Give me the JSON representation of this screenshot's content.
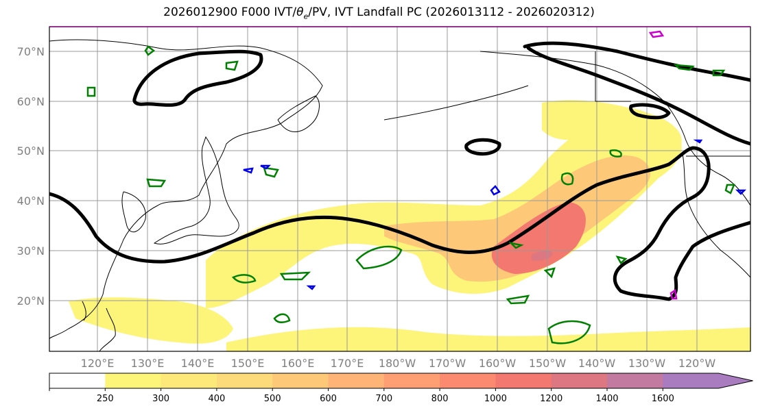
{
  "title": "2026012900 F000 IVT/θe/PV, IVT Landfall PC (2026013112 - 2026020312)",
  "title_parts": {
    "prefix": "2026012900 F000 IVT/",
    "theta": "θ",
    "sub": "e",
    "suffix": "/PV, IVT Landfall PC (2026013112 - 2026020312)"
  },
  "lat_labels": [
    "70°N",
    "60°N",
    "50°N",
    "40°N",
    "30°N",
    "20°N"
  ],
  "lon_labels": [
    "120°E",
    "130°E",
    "140°E",
    "150°E",
    "160°E",
    "170°E",
    "180°W",
    "170°W",
    "160°W",
    "150°W",
    "140°W",
    "130°W",
    "120°W"
  ],
  "colorbar": {
    "ticks": [
      "250",
      "300",
      "400",
      "500",
      "600",
      "700",
      "800",
      "1000",
      "1200",
      "1400",
      "1600"
    ],
    "colors": [
      "#ffffff",
      "#fdf47a",
      "#fde97a",
      "#fddb7a",
      "#fdc878",
      "#fdb476",
      "#fd9f73",
      "#fb8a70",
      "#f3786f",
      "#dd7781",
      "#c27aa1",
      "#a97cc0"
    ]
  },
  "colors": {
    "ivt_low": "#fdf47a",
    "ivt_mid": "#fdc878",
    "ivt_high": "#f3786f",
    "ivt_peak": "#dd7781",
    "pc_contour": "#000000",
    "pv_contour": "#008000",
    "theta_contour": "#0000ee",
    "magenta_contour": "#cc00cc",
    "grid": "#999999"
  },
  "icons": {
    "colorbar_arrow": "triangle-right"
  }
}
